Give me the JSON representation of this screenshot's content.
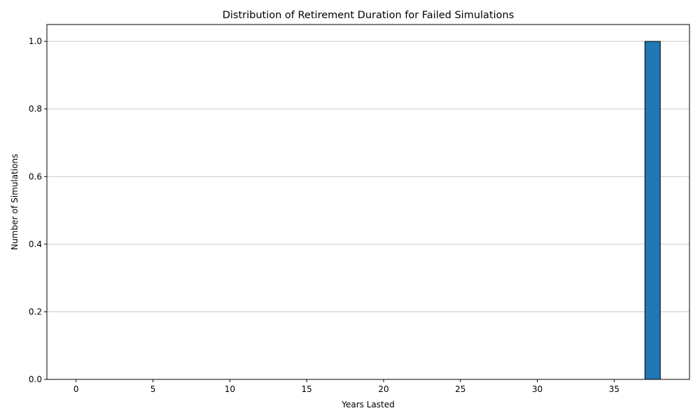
{
  "chart_data": {
    "type": "bar",
    "title": "Distribution of Retirement Duration for Failed Simulations",
    "xlabel": "Years Lasted",
    "ylabel": "Number of Simulations",
    "x_ticks": [
      0,
      5,
      10,
      15,
      20,
      25,
      30,
      35
    ],
    "y_ticks": [
      0.0,
      0.2,
      0.4,
      0.6,
      0.8,
      1.0
    ],
    "y_tick_labels": [
      "0.0",
      "0.2",
      "0.4",
      "0.6",
      "0.8",
      "1.0"
    ],
    "xlim": [
      -1.9,
      39.9
    ],
    "ylim": [
      0,
      1.05
    ],
    "grid": "y",
    "bars": [
      {
        "x_start": 37,
        "x_end": 38,
        "value": 1
      }
    ],
    "colors": {
      "bar": "#1f77b4",
      "bar_edge": "#000000",
      "grid": "#c8c8c8"
    }
  }
}
